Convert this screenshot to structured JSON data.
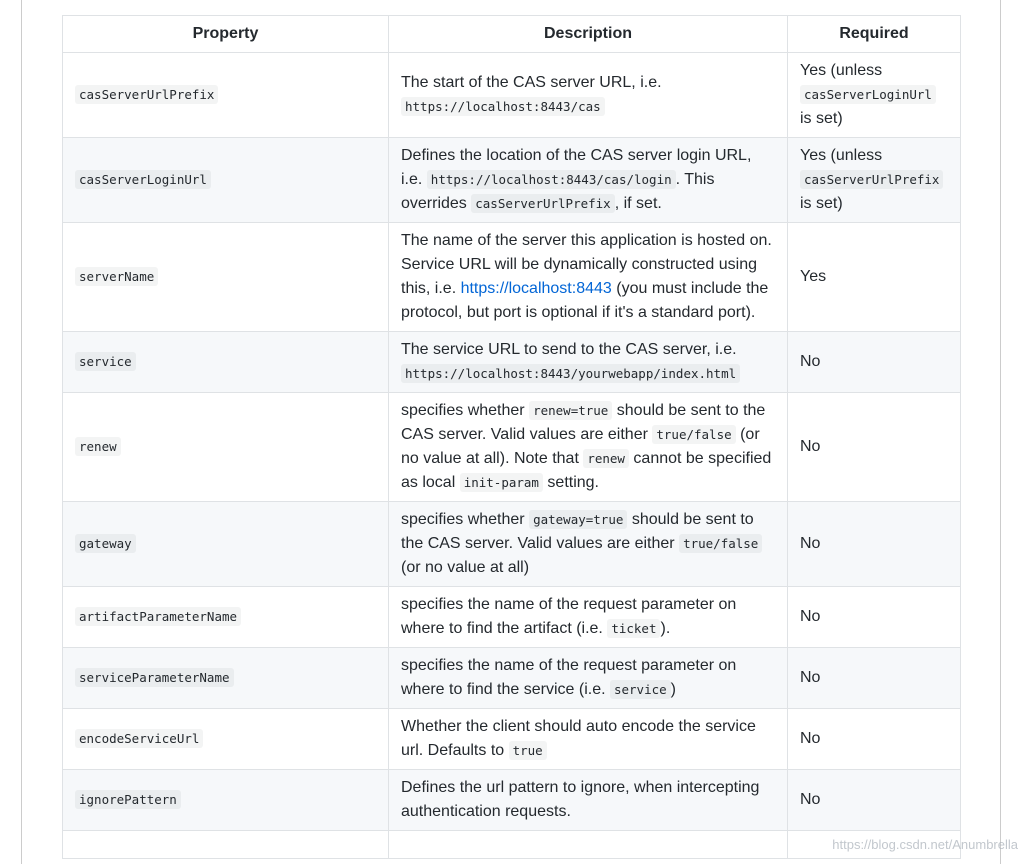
{
  "page": {
    "watermark": "https://blog.csdn.net/Anumbrella"
  },
  "colors": {
    "page-border": "#cccccc",
    "table-border": "#dfe2e5",
    "row-stripe": "#f6f8fa",
    "code-bg": "rgba(27,31,35,0.05)",
    "text": "#24292e",
    "link": "#0366d6",
    "watermark": "rgba(171,178,186,0.72)"
  },
  "table": {
    "headers": [
      "Property",
      "Description",
      "Required"
    ],
    "rows": [
      {
        "property": "casServerUrlPrefix",
        "description": [
          {
            "text": "The start of the CAS server URL, i.e. "
          },
          {
            "code": "https://localhost:8443/cas"
          }
        ],
        "required": [
          {
            "text": "Yes (unless "
          },
          {
            "code": "casServerLoginUrl"
          },
          {
            "text": " is set)"
          }
        ]
      },
      {
        "property": "casServerLoginUrl",
        "description": [
          {
            "text": "Defines the location of the CAS server login URL, i.e. "
          },
          {
            "code": "https://localhost:8443/cas/login"
          },
          {
            "text": ". This overrides "
          },
          {
            "code": "casServerUrlPrefix"
          },
          {
            "text": ", if set."
          }
        ],
        "required": [
          {
            "text": "Yes (unless "
          },
          {
            "code": "casServerUrlPrefix"
          },
          {
            "text": " is set)"
          }
        ]
      },
      {
        "property": "serverName",
        "description": [
          {
            "text": "The name of the server this application is hosted on. Service URL will be dynamically constructed using this, i.e. "
          },
          {
            "link": "https://localhost:8443"
          },
          {
            "text": " (you must include the protocol, but port is optional if it's a standard port)."
          }
        ],
        "required": [
          {
            "text": "Yes"
          }
        ]
      },
      {
        "property": "service",
        "description": [
          {
            "text": "The service URL to send to the CAS server, i.e. "
          },
          {
            "code": "https://localhost:8443/yourwebapp/index.html"
          }
        ],
        "required": [
          {
            "text": "No"
          }
        ]
      },
      {
        "property": "renew",
        "description": [
          {
            "text": "specifies whether "
          },
          {
            "code": "renew=true"
          },
          {
            "text": " should be sent to the CAS server. Valid values are either "
          },
          {
            "code": "true/false"
          },
          {
            "text": " (or no value at all). Note that "
          },
          {
            "code": "renew"
          },
          {
            "text": " cannot be specified as local "
          },
          {
            "code": "init-param"
          },
          {
            "text": " setting."
          }
        ],
        "required": [
          {
            "text": "No"
          }
        ]
      },
      {
        "property": "gateway",
        "description": [
          {
            "text": "specifies whether "
          },
          {
            "code": "gateway=true"
          },
          {
            "text": " should be sent to the CAS server. Valid values are either "
          },
          {
            "code": "true/false"
          },
          {
            "text": " (or no value at all)"
          }
        ],
        "required": [
          {
            "text": "No"
          }
        ]
      },
      {
        "property": "artifactParameterName",
        "description": [
          {
            "text": "specifies the name of the request parameter on where to find the artifact (i.e. "
          },
          {
            "code": "ticket"
          },
          {
            "text": ")."
          }
        ],
        "required": [
          {
            "text": "No"
          }
        ]
      },
      {
        "property": "serviceParameterName",
        "description": [
          {
            "text": "specifies the name of the request parameter on where to find the service (i.e. "
          },
          {
            "code": "service"
          },
          {
            "text": ")"
          }
        ],
        "required": [
          {
            "text": "No"
          }
        ]
      },
      {
        "property": "encodeServiceUrl",
        "description": [
          {
            "text": "Whether the client should auto encode the service url. Defaults to "
          },
          {
            "code": "true"
          }
        ],
        "required": [
          {
            "text": "No"
          }
        ]
      },
      {
        "property": "ignorePattern",
        "description": [
          {
            "text": "Defines the url pattern to ignore, when intercepting authentication requests."
          }
        ],
        "required": [
          {
            "text": "No"
          }
        ]
      },
      {
        "property": "",
        "description": [],
        "required": []
      }
    ]
  }
}
